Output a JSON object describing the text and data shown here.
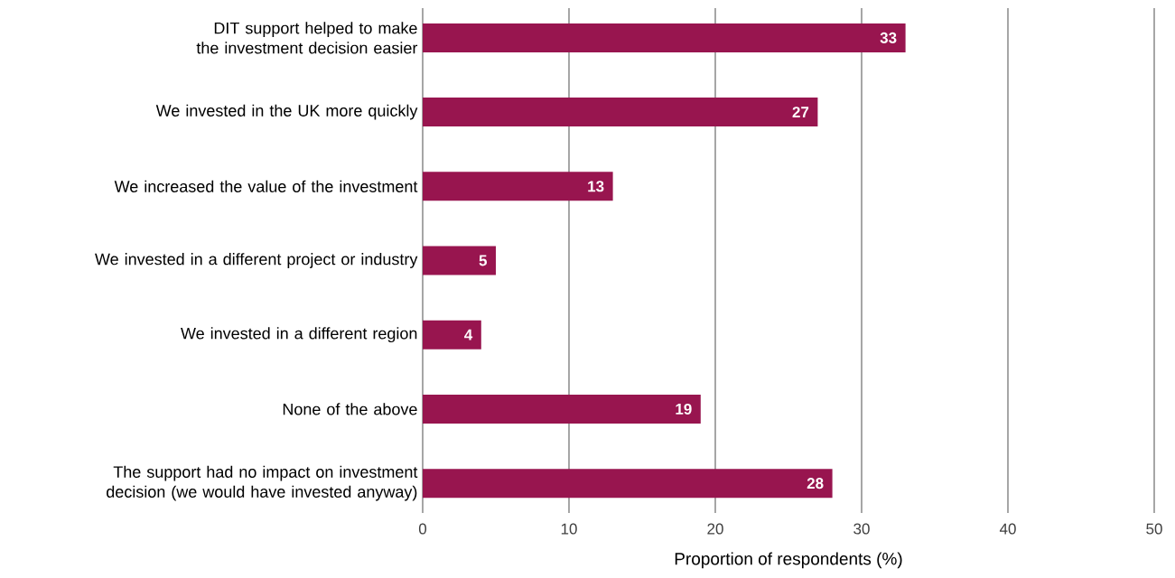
{
  "chart_data": {
    "type": "bar",
    "orientation": "horizontal",
    "categories": [
      "DIT support helped to make the investment decision easier",
      "We invested in the UK more quickly",
      "We increased the value of the investment",
      "We invested in a different project or industry",
      "We invested in a different region",
      "None of the above",
      "The support had no impact on investment decision (we would have invested anyway)"
    ],
    "values": [
      33,
      27,
      13,
      5,
      4,
      19,
      28
    ],
    "color": "#98154f",
    "xlabel": "Proportion of respondents (%)",
    "xlim": [
      0,
      50
    ],
    "xticks": [
      0,
      10,
      20,
      30,
      40,
      50
    ],
    "grid": "x",
    "data_labels": true
  }
}
